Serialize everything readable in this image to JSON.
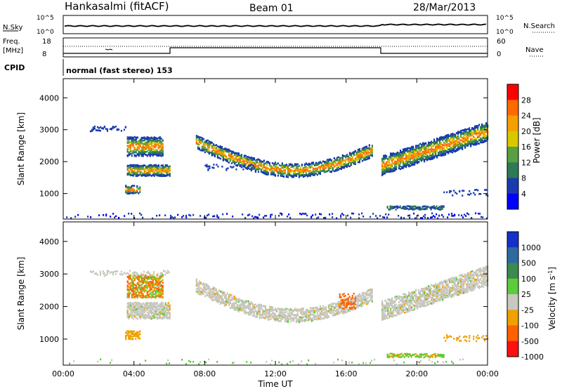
{
  "header": {
    "station": "Hankasalmi (fitACF)",
    "beam": "Beam 01",
    "date": "28/Mar/2013"
  },
  "noise_panel": {
    "left_label": "N.Sky",
    "left_ticks": [
      "10^5",
      "10^0"
    ],
    "right_label": "N.Search",
    "right_ticks": [
      "10^5",
      "10^0"
    ]
  },
  "freq_panel": {
    "left_label_top": "Freq.",
    "left_label_bottom": "[MHz]",
    "left_ticks": [
      "18",
      "8"
    ],
    "right_label": "Nave",
    "right_ticks": [
      "60",
      "0"
    ]
  },
  "cpid": {
    "label": "CPID",
    "mode": "normal (fast stereo) 153"
  },
  "chart_data": [
    {
      "type": "heatmap",
      "name": "power",
      "ylabel": "Slant Range [km]",
      "yticks": [
        "1000",
        "2000",
        "3000",
        "4000"
      ],
      "ylim": [
        200,
        4600
      ],
      "xlim": [
        0,
        24
      ],
      "colorbar": {
        "label": "Power [dB]",
        "ticks": [
          "28",
          "24",
          "20",
          "16",
          "12",
          "8",
          "4"
        ],
        "colors": [
          "#ff0000",
          "#ff6a00",
          "#f5a000",
          "#d8c800",
          "#58a040",
          "#2e7a55",
          "#1a3bb0",
          "#0000ff"
        ]
      }
    },
    {
      "type": "heatmap",
      "name": "velocity",
      "ylabel": "Slant Range [km]",
      "yticks": [
        "1000",
        "2000",
        "3000",
        "4000"
      ],
      "ylim": [
        200,
        4600
      ],
      "xlim": [
        0,
        24
      ],
      "colorbar": {
        "label": "Velocity [m s^-1]",
        "ticks": [
          "1000",
          "500",
          "100",
          "25",
          "-25",
          "-100",
          "-500",
          "-1000"
        ],
        "colors": [
          "#1530c8",
          "#2e6aa0",
          "#3c8a50",
          "#5ccc3c",
          "#c8c8c0",
          "#f0a000",
          "#ff6000",
          "#ff1010"
        ]
      }
    }
  ],
  "xaxis": {
    "label": "Time UT",
    "ticks": [
      "00:00",
      "04:00",
      "08:00",
      "12:00",
      "16:00",
      "20:00",
      "00:00"
    ]
  }
}
